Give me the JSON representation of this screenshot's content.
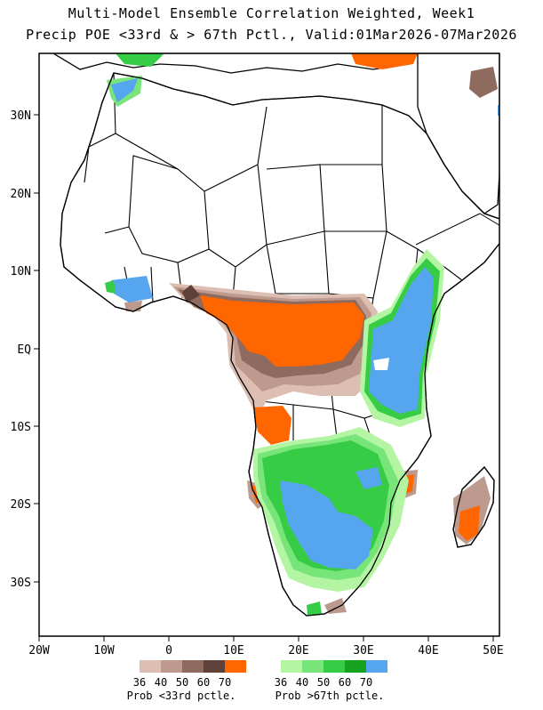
{
  "title": {
    "line1": "Multi-Model Ensemble Correlation Weighted, Week1",
    "line2": "Precip POE <33rd & > 67th Pctl., Valid:01Mar2026-07Mar2026"
  },
  "axes": {
    "x_ticks": [
      "20W",
      "10W",
      "0",
      "10E",
      "20E",
      "30E",
      "40E",
      "50E"
    ],
    "y_ticks": [
      "30N",
      "20N",
      "10N",
      "EQ",
      "10S",
      "20S",
      "30S"
    ]
  },
  "legend": {
    "below": {
      "levels": [
        "36",
        "40",
        "50",
        "60",
        "70"
      ],
      "colors": [
        "#dcbfb2",
        "#bd9a8d",
        "#8f6a5f",
        "#5e4138",
        "#ff6600"
      ],
      "label": "Prob <33rd pctle."
    },
    "above": {
      "levels": [
        "36",
        "40",
        "50",
        "60",
        "70"
      ],
      "colors": [
        "#b4f5a4",
        "#78e57a",
        "#37cc45",
        "#17a31f",
        "#55a6ef"
      ],
      "label": "Prob >67th pctle."
    }
  },
  "map_colors": {
    "ocean": "#ffffff",
    "border": "#000000"
  }
}
